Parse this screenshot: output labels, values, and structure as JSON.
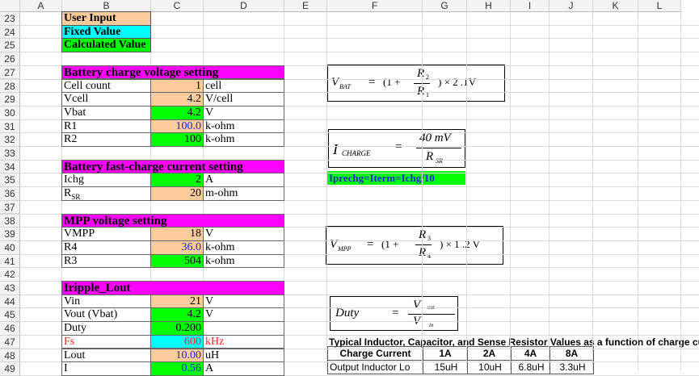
{
  "columns": [
    "A",
    "B",
    "C",
    "D",
    "E",
    "F",
    "G",
    "H",
    "I",
    "J",
    "K",
    "L"
  ],
  "rows": [
    23,
    24,
    25,
    26,
    27,
    28,
    29,
    30,
    31,
    32,
    33,
    34,
    35,
    36,
    37,
    38,
    39,
    40,
    41,
    42,
    43,
    44,
    45,
    46,
    47,
    48,
    49
  ],
  "colors": {
    "user_input": "#fccc9c",
    "fixed": "#00ffff",
    "calculated": "#00ff00",
    "header": "#ff00ff",
    "blue_text": "#2020e0",
    "red_text": "#ff2020"
  },
  "legend": [
    {
      "row": 23,
      "label": "User Input",
      "type": "user_input"
    },
    {
      "row": 24,
      "label": "Fixed Value",
      "type": "fixed"
    },
    {
      "row": 25,
      "label": "Calculated Value",
      "type": "calculated"
    }
  ],
  "sections": [
    {
      "row": 27,
      "title": "Battery charge voltage setting",
      "items": [
        {
          "row": 28,
          "label": "Cell count",
          "value": "1",
          "unit": "cell",
          "type": "user_input"
        },
        {
          "row": 29,
          "label": "Vcell",
          "value": "4.2",
          "unit": "V/cell",
          "type": "user_input"
        },
        {
          "row": 30,
          "label": "Vbat",
          "value": "4.2",
          "unit": "V",
          "type": "calculated"
        },
        {
          "row": 31,
          "label": "R1",
          "value": "100.0",
          "unit": "k-ohm",
          "type": "user_input",
          "blue": true
        },
        {
          "row": 32,
          "label": "R2",
          "value": "100",
          "unit": "k-ohm",
          "type": "calculated"
        }
      ]
    },
    {
      "row": 34,
      "title": "Battery fast-charge current setting",
      "items": [
        {
          "row": 35,
          "label": "Ichg",
          "value": "2",
          "unit": "A",
          "type": "calculated"
        },
        {
          "row": 36,
          "label": "R",
          "sub": "SR",
          "value": "20",
          "unit": "m-ohm",
          "type": "user_input"
        }
      ]
    },
    {
      "row": 38,
      "title": "MPP voltage setting",
      "items": [
        {
          "row": 39,
          "label": "VMPP",
          "value": "18",
          "unit": "V",
          "type": "user_input"
        },
        {
          "row": 40,
          "label": "R4",
          "value": "36.0",
          "unit": "k-ohm",
          "type": "user_input",
          "blue": true
        },
        {
          "row": 41,
          "label": "R3",
          "value": "504",
          "unit": "k-ohm",
          "type": "calculated"
        }
      ]
    },
    {
      "row": 43,
      "title": "Iripple_Lout",
      "items": [
        {
          "row": 44,
          "label": "Vin",
          "value": "21",
          "unit": "V",
          "type": "user_input"
        },
        {
          "row": 45,
          "label": "Vout  (Vbat)",
          "value": "4.2",
          "unit": "V",
          "type": "calculated"
        },
        {
          "row": 46,
          "label": "Duty",
          "value": "0.200",
          "unit": "",
          "type": "calculated"
        },
        {
          "row": 47,
          "label": "Fs",
          "value": "600",
          "unit": "kHz",
          "type": "fixed",
          "red": true
        },
        {
          "row": 48,
          "label": "Lout",
          "value": "10.00",
          "unit": "uH",
          "type": "user_input",
          "blue": true
        },
        {
          "row": 49,
          "label": "I",
          "value": "0.56",
          "unit": "A",
          "type": "calculated",
          "blue": true
        }
      ]
    }
  ],
  "formulas": {
    "vbat": {
      "lhs": "V",
      "lhs_sub": "BAT",
      "eq": "=",
      "pre": "(1 +",
      "num": "R",
      "num_sub": "2",
      "den": "R",
      "den_sub": "1",
      "post": ") × 2 .1V"
    },
    "icharge": {
      "lhs": "I",
      "lhs_sub": "CHARGE",
      "eq": "=",
      "num": "40  mV",
      "den": "R",
      "den_sub": "SR"
    },
    "iprechg": "Iprechg=Iterm=Ichg/10",
    "vmpp": {
      "lhs": "V",
      "lhs_sub": "MPP",
      "eq": "=",
      "pre": "(1 +",
      "num": "R",
      "num_sub": "3",
      "den": "R",
      "den_sub": "4",
      "post": ") × 1 .2 V"
    },
    "duty": {
      "lhs": "Duty",
      "eq": "=",
      "num": "V",
      "num_sub": "out",
      "den": "V",
      "den_sub": "in"
    }
  },
  "typical_table": {
    "title": "Typical Inductor, Capacitor, and Sense Resistor Values as a function of charge current",
    "headers": [
      "Charge Current",
      "1A",
      "2A",
      "4A",
      "8A"
    ],
    "rows": [
      [
        "Output Inductor Lo",
        "15uH",
        "10uH",
        "6.8uH",
        "3.3uH"
      ]
    ]
  }
}
